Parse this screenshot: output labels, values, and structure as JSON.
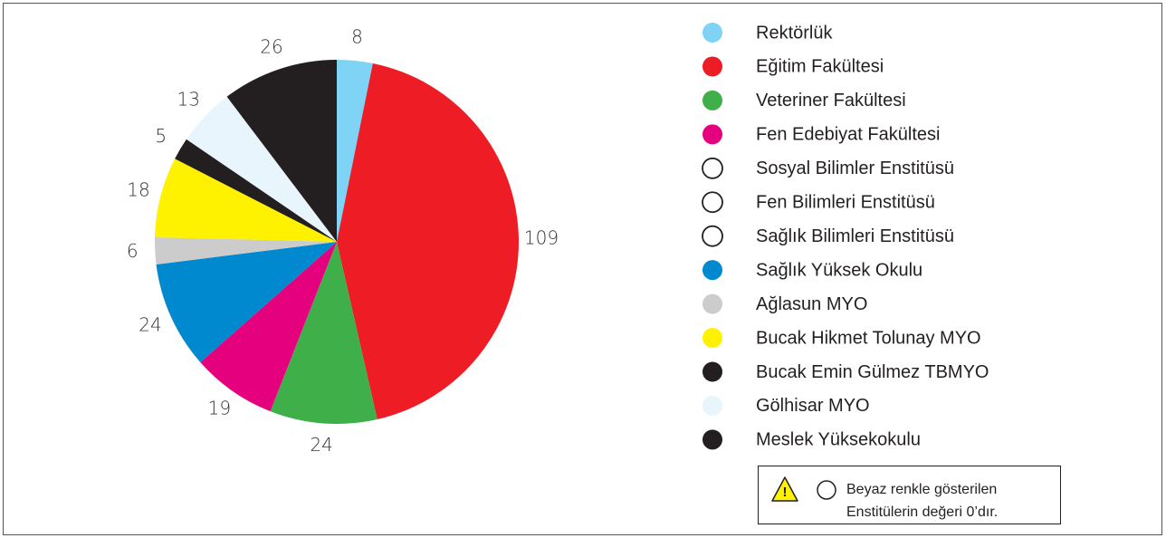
{
  "chart_data": {
    "type": "pie",
    "categories": [
      "Rektörlük",
      "Eğitim Fakültesi",
      "Veteriner Fakültesi",
      "Fen Edebiyat Fakültesi",
      "Sosyal Bilimler Enstitüsü",
      "Fen Bilimleri Enstitüsü",
      "Sağlık Bilimleri Enstitüsü",
      "Sağlık Yüksek Okulu",
      "Ağlasun MYO",
      "Bucak Hikmet Tolunay MYO",
      "Bucak Emin Gülmez TBMYO",
      "Gölhisar MYO",
      "Meslek Yüksekokulu"
    ],
    "values": [
      8,
      109,
      24,
      19,
      0,
      0,
      0,
      24,
      6,
      18,
      5,
      13,
      26
    ],
    "colors": [
      "#7fd3f5",
      "#ee1c25",
      "#3faf49",
      "#e5007e",
      "#ffffff",
      "#ffffff",
      "#ffffff",
      "#0089cf",
      "#cccccc",
      "#fff200",
      "#231f20",
      "#e8f5fc",
      "#231f20"
    ],
    "legend": "right",
    "annotation": [
      "Beyaz renkle gösterilen",
      "Enstitülerin değeri 0’dır."
    ]
  }
}
